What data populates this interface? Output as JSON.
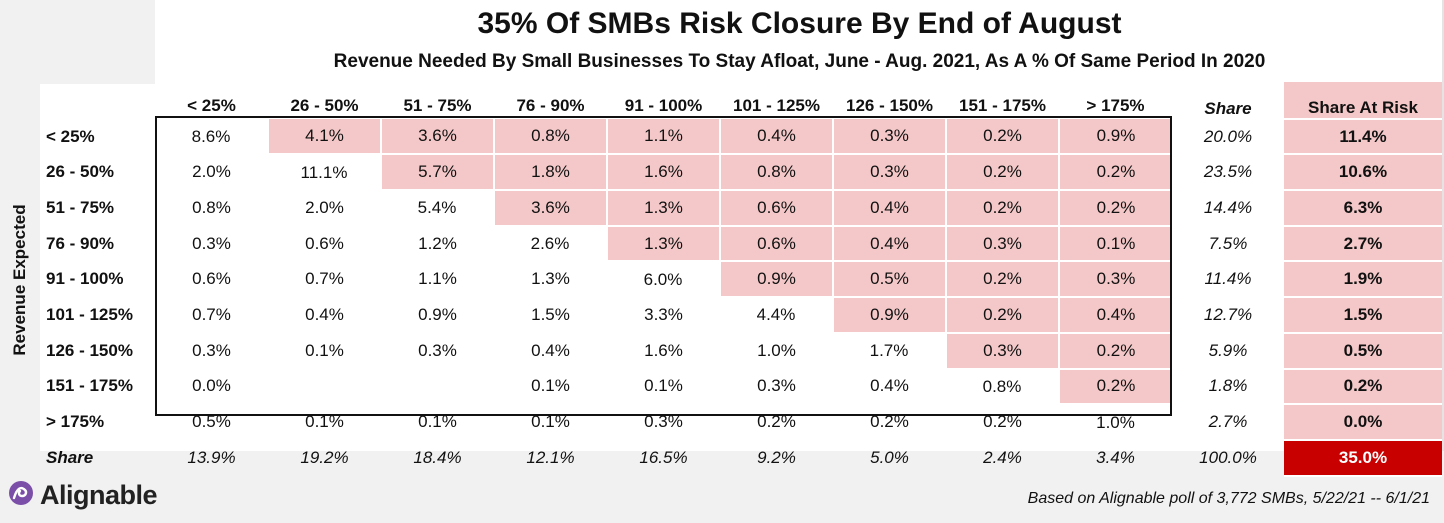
{
  "chart_data": {
    "type": "table",
    "title": "35% Of SMBs Risk Closure By End of August",
    "subtitle": "Revenue Needed By Small Businesses To Stay Afloat, June - Aug. 2021, As A % Of Same Period In 2020",
    "ylabel": "Revenue Expected",
    "columns": [
      "< 25%",
      "26 - 50%",
      "51 - 75%",
      "76 - 90%",
      "91 - 100%",
      "101 - 125%",
      "126 - 150%",
      "151 - 175%",
      "> 175%"
    ],
    "share_label": "Share",
    "risk_label": "Share At Risk",
    "rows": [
      {
        "label": "< 25%",
        "values": [
          "8.6%",
          "4.1%",
          "3.6%",
          "0.8%",
          "1.1%",
          "0.4%",
          "0.3%",
          "0.2%",
          "0.9%"
        ],
        "share": "20.0%",
        "risk": "11.4%"
      },
      {
        "label": "26 - 50%",
        "values": [
          "2.0%",
          "11.1%",
          "5.7%",
          "1.8%",
          "1.6%",
          "0.8%",
          "0.3%",
          "0.2%",
          "0.2%"
        ],
        "share": "23.5%",
        "risk": "10.6%"
      },
      {
        "label": "51 - 75%",
        "values": [
          "0.8%",
          "2.0%",
          "5.4%",
          "3.6%",
          "1.3%",
          "0.6%",
          "0.4%",
          "0.2%",
          "0.2%"
        ],
        "share": "14.4%",
        "risk": "6.3%"
      },
      {
        "label": "76 - 90%",
        "values": [
          "0.3%",
          "0.6%",
          "1.2%",
          "2.6%",
          "1.3%",
          "0.6%",
          "0.4%",
          "0.3%",
          "0.1%"
        ],
        "share": "7.5%",
        "risk": "2.7%"
      },
      {
        "label": "91 - 100%",
        "values": [
          "0.6%",
          "0.7%",
          "1.1%",
          "1.3%",
          "6.0%",
          "0.9%",
          "0.5%",
          "0.2%",
          "0.3%"
        ],
        "share": "11.4%",
        "risk": "1.9%"
      },
      {
        "label": "101 - 125%",
        "values": [
          "0.7%",
          "0.4%",
          "0.9%",
          "1.5%",
          "3.3%",
          "4.4%",
          "0.9%",
          "0.2%",
          "0.4%"
        ],
        "share": "12.7%",
        "risk": "1.5%"
      },
      {
        "label": "126 - 150%",
        "values": [
          "0.3%",
          "0.1%",
          "0.3%",
          "0.4%",
          "1.6%",
          "1.0%",
          "1.7%",
          "0.3%",
          "0.2%"
        ],
        "share": "5.9%",
        "risk": "0.5%"
      },
      {
        "label": "151 - 175%",
        "values": [
          "0.0%",
          "",
          "",
          "0.1%",
          "0.1%",
          "0.3%",
          "0.4%",
          "0.8%",
          "0.2%"
        ],
        "share": "1.8%",
        "risk": "0.2%"
      },
      {
        "label": "> 175%",
        "values": [
          "0.5%",
          "0.1%",
          "0.1%",
          "0.1%",
          "0.3%",
          "0.2%",
          "0.2%",
          "0.2%",
          "1.0%"
        ],
        "share": "2.7%",
        "risk": "0.0%"
      }
    ],
    "total_row": {
      "label": "Share",
      "values": [
        "13.9%",
        "19.2%",
        "18.4%",
        "12.1%",
        "16.5%",
        "9.2%",
        "5.0%",
        "2.4%",
        "3.4%"
      ],
      "share": "100.0%",
      "risk": "35.0%"
    },
    "highlight_color": "#f4c8c8",
    "total_risk_color": "#c90000"
  },
  "logo": {
    "text": "Alignable",
    "icon": "alignable-logo-icon",
    "color": "#7b4fa8"
  },
  "source": "Based on Alignable poll of 3,772 SMBs, 5/22/21 -- 6/1/21"
}
